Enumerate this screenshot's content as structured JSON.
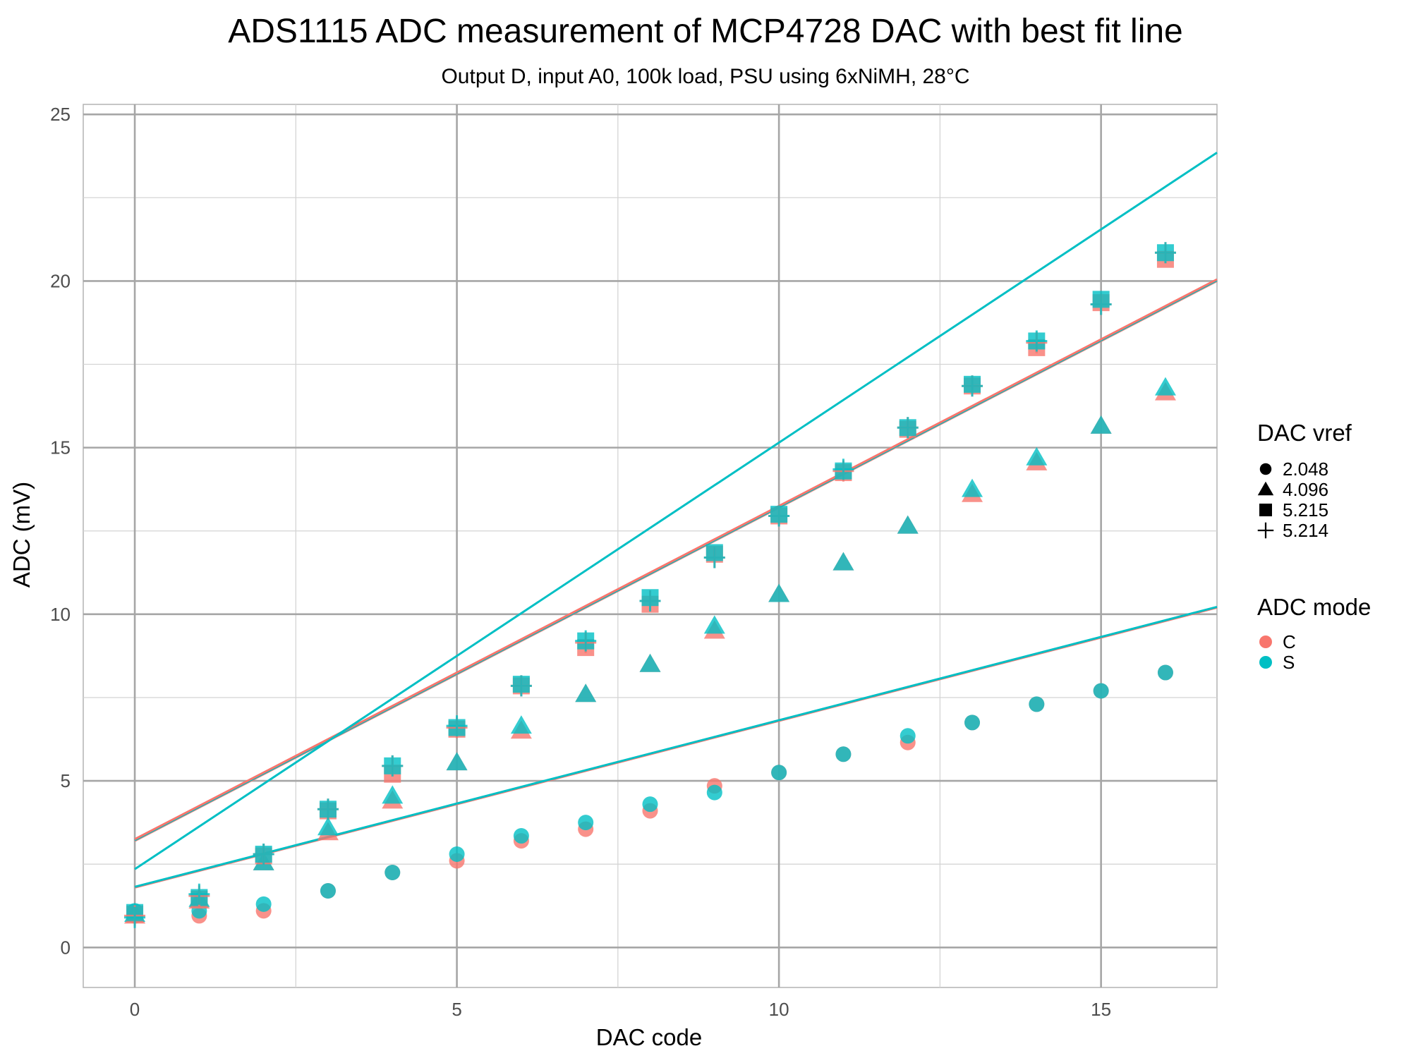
{
  "chart_data": {
    "type": "scatter",
    "title": "ADS1115 ADC measurement of MCP4728 DAC with best fit line",
    "subtitle": "Output D, input A0, 100k load, PSU using 6xNiMH, 28°C",
    "xlabel": "DAC code",
    "ylabel": "ADC (mV)",
    "xlim": [
      -0.8,
      16.8
    ],
    "ylim": [
      -1.2,
      25.3
    ],
    "x_ticks": [
      0,
      5,
      10,
      15
    ],
    "y_ticks": [
      0,
      5,
      10,
      15,
      20,
      25
    ],
    "grid": true,
    "colors": {
      "C": "#F8766D",
      "S": "#00BFC4",
      "grid_major": "#a6a6a6",
      "grid_minor": "#d4d4d4",
      "panel_border": "#b3b3b3"
    },
    "legends": [
      {
        "title": "DAC vref",
        "placement": "right",
        "entries": [
          {
            "label": "2.048",
            "shape": "circle"
          },
          {
            "label": "4.096",
            "shape": "triangle"
          },
          {
            "label": "5.215",
            "shape": "square"
          },
          {
            "label": "5.214",
            "shape": "plus"
          }
        ]
      },
      {
        "title": "ADC mode",
        "placement": "right",
        "entries": [
          {
            "label": "C",
            "shape": "circle",
            "color": "#F8766D"
          },
          {
            "label": "S",
            "shape": "circle",
            "color": "#00BFC4"
          }
        ]
      }
    ],
    "series": [
      {
        "name": "2.048",
        "shape": "circle",
        "mode": "C",
        "x": [
          0,
          1,
          2,
          3,
          4,
          5,
          6,
          7,
          8,
          9,
          10,
          11,
          12,
          13,
          14,
          15,
          16
        ],
        "y": [
          0.95,
          0.95,
          1.1,
          1.7,
          2.25,
          2.6,
          3.2,
          3.55,
          4.1,
          4.85,
          5.25,
          5.8,
          6.15,
          6.75,
          7.3,
          7.7,
          8.25
        ]
      },
      {
        "name": "2.048",
        "shape": "circle",
        "mode": "S",
        "x": [
          0,
          1,
          2,
          3,
          4,
          5,
          6,
          7,
          8,
          9,
          10,
          11,
          12,
          13,
          14,
          15,
          16
        ],
        "y": [
          1.1,
          1.1,
          1.3,
          1.7,
          2.25,
          2.8,
          3.35,
          3.75,
          4.3,
          4.65,
          5.25,
          5.8,
          6.35,
          6.75,
          7.3,
          7.7,
          8.25
        ]
      },
      {
        "name": "4.096",
        "shape": "triangle",
        "mode": "C",
        "x": [
          0,
          1,
          2,
          3,
          4,
          5,
          6,
          7,
          8,
          9,
          10,
          11,
          12,
          13,
          14,
          15,
          16
        ],
        "y": [
          0.95,
          1.4,
          2.55,
          3.45,
          4.4,
          5.55,
          6.5,
          7.6,
          8.5,
          9.5,
          10.6,
          11.55,
          12.65,
          13.6,
          14.55,
          15.65,
          16.65
        ]
      },
      {
        "name": "4.096",
        "shape": "triangle",
        "mode": "S",
        "x": [
          0,
          1,
          2,
          3,
          4,
          5,
          6,
          7,
          8,
          9,
          10,
          11,
          12,
          13,
          14,
          15,
          16
        ],
        "y": [
          1.0,
          1.45,
          2.55,
          3.6,
          4.55,
          5.55,
          6.65,
          7.6,
          8.5,
          9.65,
          10.6,
          11.55,
          12.65,
          13.75,
          14.7,
          15.65,
          16.8
        ]
      },
      {
        "name": "5.215",
        "shape": "square",
        "mode": "C",
        "x": [
          0,
          1,
          2,
          3,
          4,
          5,
          6,
          7,
          8,
          9,
          10,
          11,
          12,
          13,
          14,
          15,
          16
        ],
        "y": [
          1.0,
          1.45,
          2.75,
          4.1,
          5.2,
          6.55,
          7.85,
          9.0,
          10.3,
          11.8,
          12.95,
          14.25,
          15.55,
          16.85,
          18.0,
          19.35,
          20.65
        ]
      },
      {
        "name": "5.215",
        "shape": "square",
        "mode": "S",
        "x": [
          0,
          1,
          2,
          3,
          4,
          5,
          6,
          7,
          8,
          9,
          10,
          11,
          12,
          13,
          14,
          15,
          16
        ],
        "y": [
          1.05,
          1.5,
          2.8,
          4.15,
          5.45,
          6.6,
          7.9,
          9.2,
          10.5,
          11.85,
          13.0,
          14.3,
          15.6,
          16.9,
          18.2,
          19.45,
          20.85
        ]
      },
      {
        "name": "5.214",
        "shape": "plus",
        "mode": "C",
        "x": [
          0,
          1,
          2,
          3,
          4,
          5,
          6,
          7,
          8,
          9,
          10,
          11,
          12,
          13,
          14,
          15,
          16
        ],
        "y": [
          0.95,
          1.55,
          2.8,
          4.15,
          5.45,
          6.6,
          7.85,
          9.15,
          10.4,
          11.7,
          12.95,
          14.3,
          15.6,
          16.85,
          18.15,
          19.3,
          20.85
        ]
      },
      {
        "name": "5.214",
        "shape": "plus",
        "mode": "S",
        "x": [
          0,
          1,
          2,
          3,
          4,
          5,
          6,
          7,
          8,
          9,
          10,
          11,
          12,
          13,
          14,
          15,
          16
        ],
        "y": [
          0.9,
          1.6,
          2.8,
          4.15,
          5.45,
          6.65,
          7.85,
          9.2,
          10.4,
          11.7,
          12.95,
          14.35,
          15.6,
          16.85,
          18.2,
          19.3,
          20.85
        ]
      }
    ],
    "fit_lines": [
      {
        "vref": "2.048",
        "mode": "C",
        "intercept": 1.8,
        "slope": 0.5
      },
      {
        "vref": "2.048",
        "mode": "S",
        "intercept": 1.82,
        "slope": 0.5
      },
      {
        "vref": "4.096",
        "mode": "C",
        "intercept": 3.2,
        "slope": 1.0
      },
      {
        "vref": "4.096",
        "mode": "S",
        "intercept": 3.22,
        "slope": 1.0
      },
      {
        "vref": "5.215",
        "mode": "C",
        "intercept": 3.25,
        "slope": 1.0
      },
      {
        "vref": "5.215",
        "mode": "S",
        "intercept": 2.35,
        "slope": 1.28
      }
    ]
  }
}
